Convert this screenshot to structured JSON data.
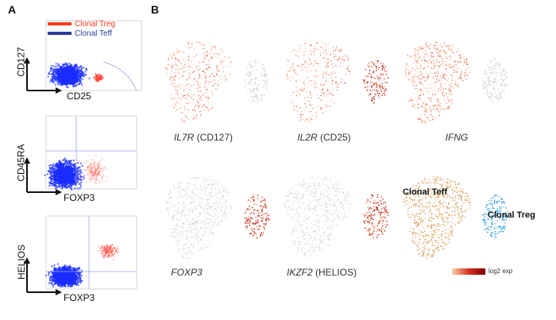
{
  "panel_a_letter": "A",
  "panel_b_letter": "B",
  "legend": [
    {
      "label": "Clonal Treg",
      "color": "#ff3b1f"
    },
    {
      "label": "Clonal Teff",
      "color": "#2b3d9e"
    }
  ],
  "facs_plots": [
    {
      "ylabel": "CD127",
      "xlabel": "CD25"
    },
    {
      "ylabel": "CD45RA",
      "xlabel": "FOXP3"
    },
    {
      "ylabel": "HELIOS",
      "xlabel": "FOXP3"
    }
  ],
  "tsne_plots": [
    {
      "gene": "IL7R",
      "suffix": " (CD127)"
    },
    {
      "gene": "IL2R",
      "suffix": " (CD25)"
    },
    {
      "gene": "IFNG",
      "suffix": ""
    },
    {
      "gene": "FOXP3",
      "suffix": ""
    },
    {
      "gene": "IKZF2",
      "suffix": " (HELIOS)"
    },
    {
      "gene": "",
      "suffix": ""
    }
  ],
  "cluster_labels": {
    "teff": "Clonal Teff",
    "treg": "Clonal Treg"
  },
  "scale_label": "log2 exp",
  "colors": {
    "teff_blue": "#1a2cff",
    "treg_red": "#ff4a3a",
    "teff_tan": "#d9a25a",
    "treg_cyan": "#3aa9e0"
  }
}
